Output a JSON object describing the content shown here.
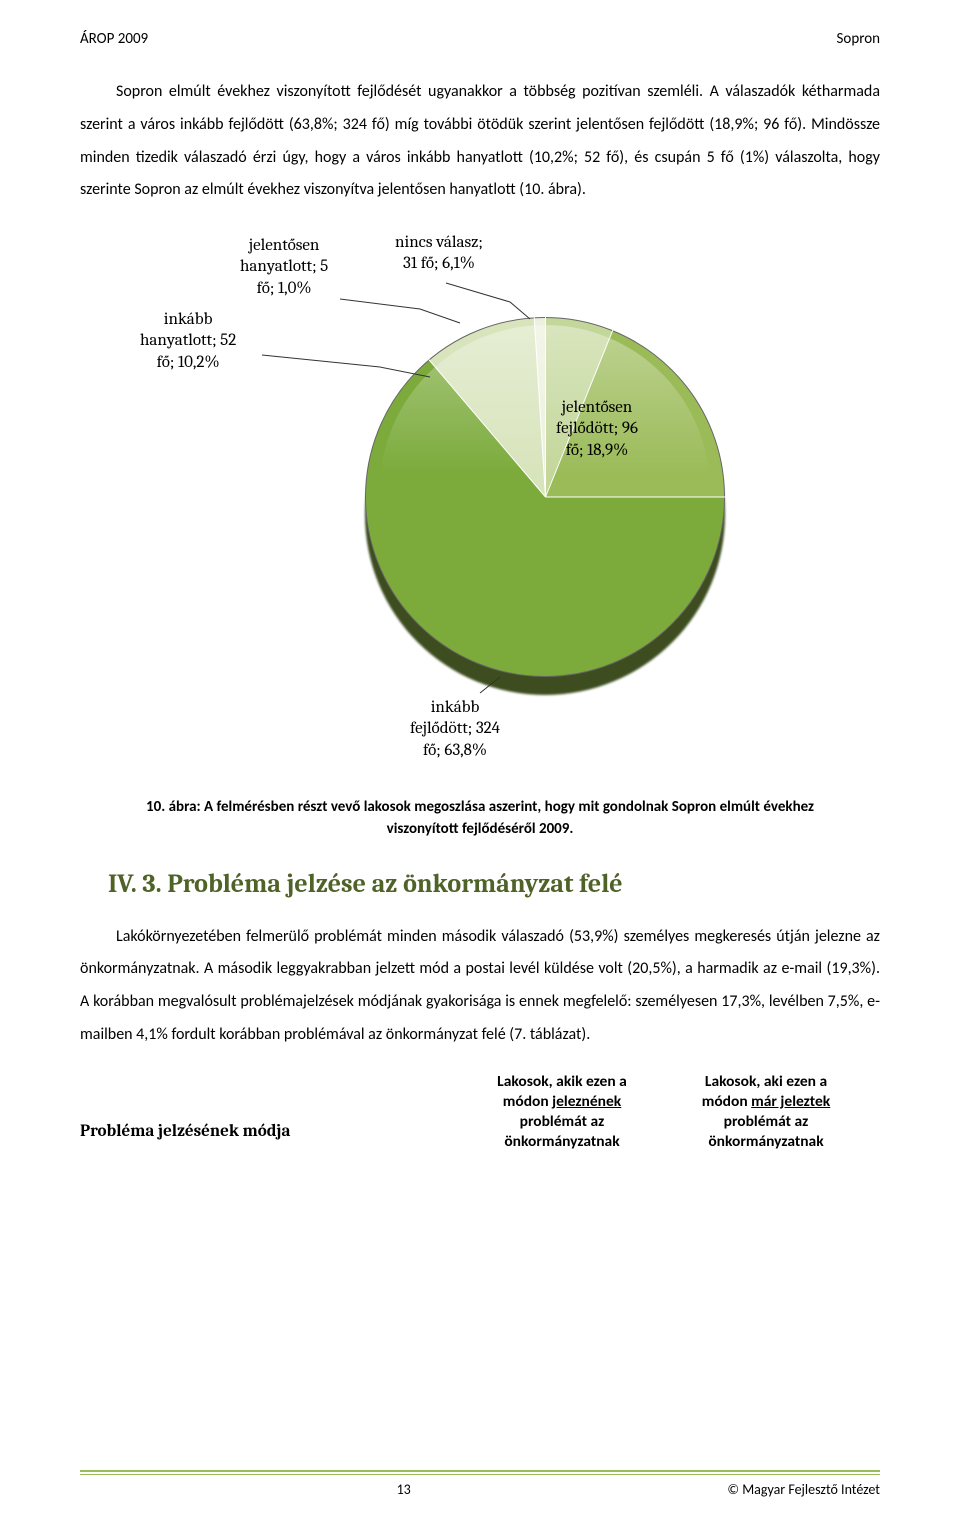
{
  "header": {
    "left": "ÁROP 2009",
    "right": "Sopron"
  },
  "paragraph1": "Sopron elmúlt évekhez viszonyított fejlődését ugyanakkor a többség pozitívan szemléli. A válaszadók kétharmada szerint a város inkább fejlődött (63,8%; 324 fő) míg további ötödük szerint jelentősen fejlődött (18,9%; 96 fő). Mindössze minden tizedik válaszadó érzi úgy, hogy a város inkább hanyatlott (10,2%; 52 fő), és csupán 5 fő (1%) válaszolta, hogy szerinte Sopron az elmúlt évekhez viszonyítva jelentősen hanyatlott (10. ábra).",
  "chart": {
    "type": "pie",
    "background": "#ffffff",
    "slices": [
      {
        "key": "nincs_valasz",
        "label_line1": "nincs válasz;",
        "label_line2": "31 fő; 6,1%",
        "percent": 6.1,
        "color": "#c4d79b"
      },
      {
        "key": "jelentosen_fejlodott",
        "label_line1": "jelentősen",
        "label_line2": "fejlődött; 96",
        "label_line3": "fő; 18,9%",
        "percent": 18.9,
        "color": "#9bbb59"
      },
      {
        "key": "inkabb_fejlodott",
        "label_line1": "inkább",
        "label_line2": "fejlődött; 324",
        "label_line3": "fő; 63,8%",
        "percent": 63.8,
        "color": "#7cab3c"
      },
      {
        "key": "inkabb_hanyatlott",
        "label_line1": "inkább",
        "label_line2": "hanyatlott; 52",
        "label_line3": "fő; 10,2%",
        "percent": 10.2,
        "color": "#d8e4bc"
      },
      {
        "key": "jelentosen_hanyatlott",
        "label_line1": "jelentősen",
        "label_line2": "hanyatlott; 5",
        "label_line3": "fő; 1,0%",
        "percent": 1.0,
        "color": "#ebf1de"
      }
    ],
    "label_font_size": 17,
    "label_color": "#000000",
    "start_angle_deg": -90
  },
  "caption": "10. ábra: A felmérésben részt vevő lakosok megoszlása aszerint, hogy mit gondolnak Sopron elmúlt évekhez viszonyított fejlődéséről 2009.",
  "section_title": "IV. 3. Probléma jelzése az önkormányzat felé",
  "paragraph2": "Lakókörnyezetében felmerülő problémát minden második válaszadó (53,9%) személyes megkeresés útján jelezne az önkormányzatnak. A második leggyakrabban jelzett mód a postai levél küldése volt (20,5%), a harmadik az e-mail (19,3%). A korábban megvalósult problémajelzések módjának gyakorisága is ennek megfelelő: személyesen 17,3%, levélben 7,5%, e-mailben 4,1% fordult korábban problémával az önkormányzat felé (7. táblázat).",
  "table_header": {
    "col1": "Probléma jelzésének módja",
    "col2_l1": "Lakosok, akik ezen a",
    "col2_l2": "módon ",
    "col2_u": "jeleznének",
    "col2_l3": "problémát az",
    "col2_l4": "önkormányzatnak",
    "col3_l1": "Lakosok, aki ezen a",
    "col3_l2": "módon ",
    "col3_u": "már jeleztek",
    "col3_l3": "problémát az",
    "col3_l4": "önkormányzatnak"
  },
  "footer": {
    "page": "13",
    "org": "© Magyar Fejlesztő Intézet"
  },
  "colors": {
    "accent": "#4f6228",
    "rule": "#9bbb59"
  }
}
